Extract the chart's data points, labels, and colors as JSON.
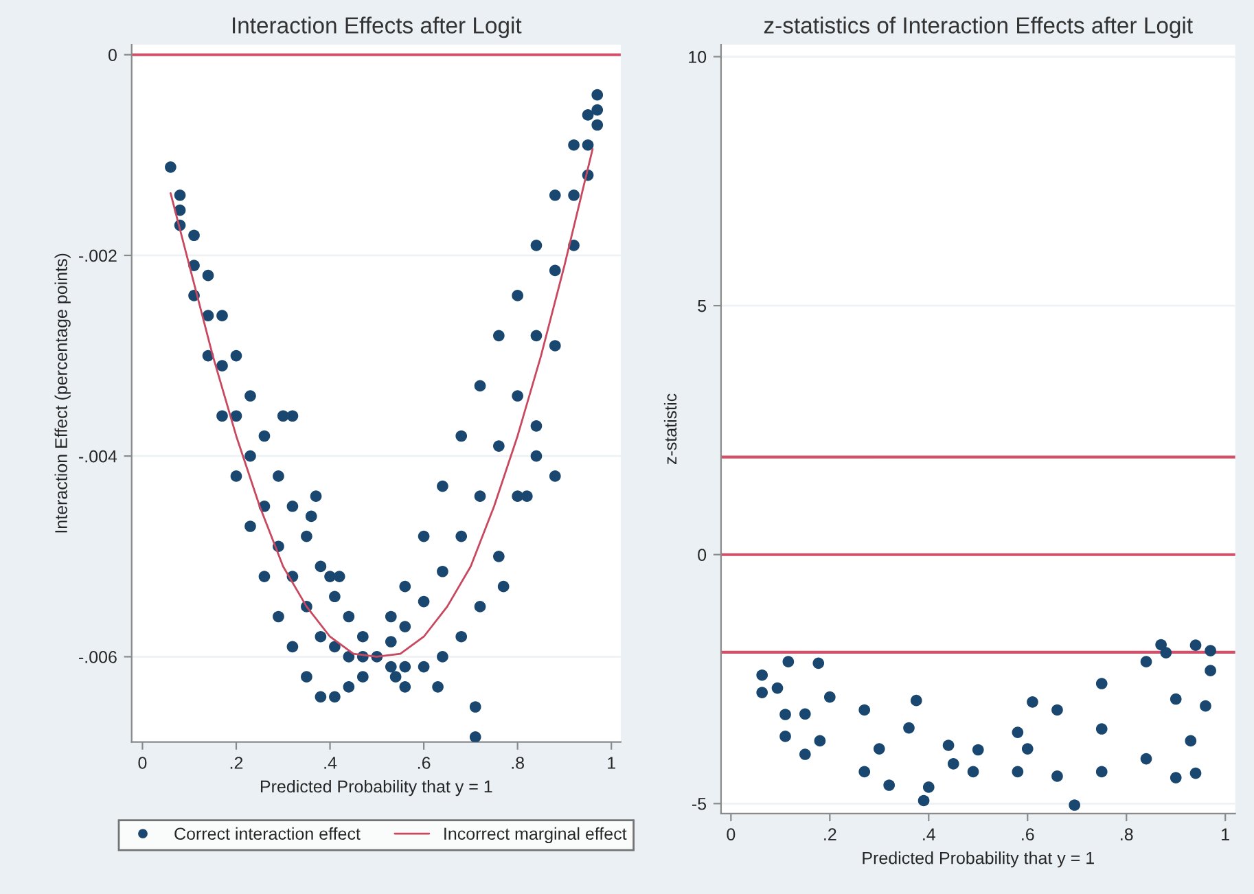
{
  "chart_data": [
    {
      "type": "scatter",
      "title": "Interaction Effects after Logit",
      "xlabel": "Predicted Probability that y = 1",
      "ylabel": "Interaction Effect (percentage points)",
      "xlim": [
        -0.023,
        1.02
      ],
      "ylim": [
        -0.00685,
        0.0001
      ],
      "xticks": [
        0,
        {
          "value": 0.2,
          "label": ".2"
        },
        {
          "value": 0.4,
          "label": ".4"
        },
        {
          "value": 0.6,
          "label": ".6"
        },
        {
          "value": 0.8,
          "label": ".8"
        },
        1
      ],
      "yticks": [
        0,
        {
          "value": -0.002,
          "label": "-.002"
        },
        {
          "value": -0.004,
          "label": "-.004"
        },
        {
          "value": -0.006,
          "label": "-.006"
        }
      ],
      "grid": "y",
      "legend": "bottom",
      "ref_lines": [
        {
          "axis": "y",
          "value": 0,
          "color": "#d0506a"
        }
      ],
      "series": [
        {
          "name": "Correct interaction effect",
          "marker": "circle",
          "color": "#1a476f",
          "x": [
            0.08,
            0.08,
            0.08,
            0.11,
            0.11,
            0.11,
            0.14,
            0.14,
            0.14,
            0.17,
            0.17,
            0.17,
            0.2,
            0.2,
            0.2,
            0.23,
            0.23,
            0.23,
            0.26,
            0.26,
            0.26,
            0.29,
            0.29,
            0.29,
            0.32,
            0.32,
            0.32,
            0.35,
            0.35,
            0.35,
            0.38,
            0.38,
            0.38,
            0.41,
            0.41,
            0.41,
            0.44,
            0.44,
            0.44,
            0.47,
            0.47,
            0.47,
            0.5,
            0.53,
            0.53,
            0.53,
            0.56,
            0.56,
            0.56,
            0.6,
            0.6,
            0.6,
            0.64,
            0.64,
            0.64,
            0.68,
            0.68,
            0.68,
            0.72,
            0.72,
            0.72,
            0.76,
            0.76,
            0.76,
            0.8,
            0.8,
            0.8,
            0.84,
            0.84,
            0.84,
            0.88,
            0.88,
            0.88,
            0.92,
            0.92,
            0.92,
            0.95,
            0.95,
            0.95,
            0.97,
            0.97,
            0.97,
            0.06,
            0.3,
            0.32,
            0.37,
            0.36,
            0.4,
            0.42,
            0.54,
            0.56,
            0.63,
            0.71,
            0.71,
            0.77,
            0.84,
            0.88,
            0.82
          ],
          "values": [
            -0.0014,
            -0.00155,
            -0.0017,
            -0.0018,
            -0.0021,
            -0.0024,
            -0.0022,
            -0.0026,
            -0.003,
            -0.0026,
            -0.0031,
            -0.0036,
            -0.003,
            -0.0036,
            -0.0042,
            -0.0034,
            -0.004,
            -0.0047,
            -0.0038,
            -0.0045,
            -0.0052,
            -0.0042,
            -0.0049,
            -0.0056,
            -0.0045,
            -0.0052,
            -0.0059,
            -0.0048,
            -0.0055,
            -0.0062,
            -0.0051,
            -0.0058,
            -0.0064,
            -0.0054,
            -0.0059,
            -0.0064,
            -0.0056,
            -0.006,
            -0.0063,
            -0.0058,
            -0.006,
            -0.0062,
            -0.006,
            -0.0056,
            -0.00585,
            -0.0061,
            -0.0053,
            -0.0057,
            -0.0061,
            -0.0048,
            -0.00545,
            -0.0061,
            -0.0043,
            -0.00515,
            -0.006,
            -0.0038,
            -0.0048,
            -0.0058,
            -0.0033,
            -0.0044,
            -0.0055,
            -0.0028,
            -0.0039,
            -0.005,
            -0.0024,
            -0.0034,
            -0.0044,
            -0.0019,
            -0.0028,
            -0.0037,
            -0.0014,
            -0.00215,
            -0.0029,
            -0.0009,
            -0.0014,
            -0.0019,
            -0.0006,
            -0.0009,
            -0.0012,
            -0.0004,
            -0.00055,
            -0.0007,
            -0.00112,
            -0.0036,
            -0.0036,
            -0.0044,
            -0.0046,
            -0.0052,
            -0.0052,
            -0.0062,
            -0.0063,
            -0.0063,
            -0.0065,
            -0.0068,
            -0.0053,
            -0.004,
            -0.0042,
            -0.0044
          ]
        },
        {
          "name": "Incorrect marginal effect",
          "type": "line",
          "marker": "none",
          "color": "#c8485f",
          "x": [
            0.06,
            0.1,
            0.15,
            0.2,
            0.25,
            0.3,
            0.35,
            0.4,
            0.45,
            0.5,
            0.55,
            0.6,
            0.65,
            0.7,
            0.75,
            0.8,
            0.85,
            0.9,
            0.96
          ],
          "values": [
            -0.00138,
            -0.0021,
            -0.003,
            -0.0038,
            -0.0045,
            -0.0051,
            -0.0055,
            -0.0058,
            -0.00597,
            -0.006,
            -0.00597,
            -0.0058,
            -0.0055,
            -0.0051,
            -0.0045,
            -0.0038,
            -0.003,
            -0.0021,
            -0.00094
          ]
        }
      ]
    },
    {
      "type": "scatter",
      "title": "z-statistics of Interaction Effects after Logit",
      "xlabel": "Predicted Probability that y = 1",
      "ylabel": "z-statistic",
      "xlim": [
        -0.02,
        1.02
      ],
      "ylim": [
        -5.2,
        10.24
      ],
      "xticks": [
        0,
        {
          "value": 0.2,
          "label": ".2"
        },
        {
          "value": 0.4,
          "label": ".4"
        },
        {
          "value": 0.6,
          "label": ".6"
        },
        {
          "value": 0.8,
          "label": ".8"
        },
        1
      ],
      "yticks": [
        -5,
        0,
        5,
        10
      ],
      "grid": "y",
      "marker": "circle",
      "ref_lines": [
        {
          "axis": "y",
          "value": 1.96,
          "color": "#d0506a"
        },
        {
          "axis": "y",
          "value": 0,
          "color": "#d0506a"
        },
        {
          "axis": "y",
          "value": -1.96,
          "color": "#d0506a"
        }
      ],
      "series": [
        {
          "color": "#1a476f",
          "x": [
            0.063,
            0.094,
            0.2,
            0.27,
            0.36,
            0.44,
            0.5,
            0.58,
            0.66,
            0.75,
            0.84,
            0.88,
            0.97,
            0.063,
            0.11,
            0.18,
            0.27,
            0.32,
            0.4,
            0.49,
            0.58,
            0.66,
            0.75,
            0.84,
            0.93,
            0.96,
            0.97,
            0.15,
            0.3,
            0.45,
            0.6,
            0.75,
            0.9,
            0.116,
            0.177,
            0.11,
            0.15,
            0.375,
            0.39,
            0.695,
            0.87,
            0.94,
            0.9,
            0.94,
            0.61
          ],
          "values": [
            -2.42,
            -2.68,
            -2.86,
            -3.12,
            -3.48,
            -3.83,
            -3.92,
            -3.57,
            -3.12,
            -2.59,
            -2.15,
            -1.97,
            -1.93,
            -2.77,
            -3.21,
            -3.74,
            -4.36,
            -4.63,
            -4.67,
            -4.36,
            -4.36,
            -4.45,
            -4.36,
            -4.1,
            -3.74,
            -3.04,
            -2.33,
            -3.2,
            -3.9,
            -4.2,
            -3.9,
            -3.5,
            -2.9,
            -2.15,
            -2.18,
            -3.65,
            -4.01,
            -2.93,
            -4.94,
            -5.03,
            -1.81,
            -1.82,
            -4.48,
            -4.39,
            -2.96
          ]
        }
      ]
    }
  ]
}
